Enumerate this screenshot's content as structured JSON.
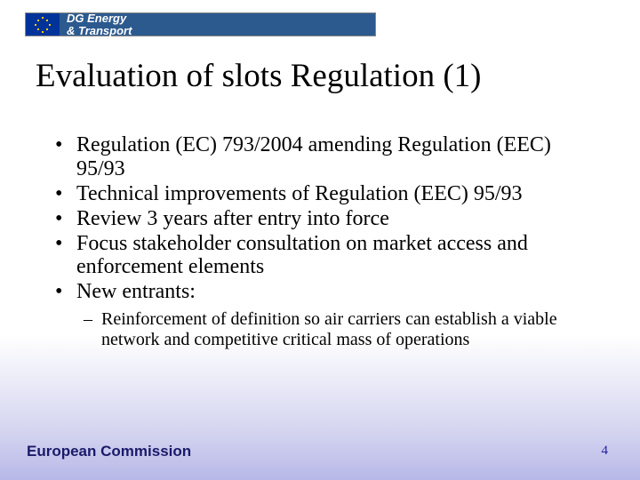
{
  "header": {
    "org_line1": "DG Energy",
    "org_line2": "& Transport"
  },
  "title": "Evaluation of slots Regulation (1)",
  "bullets": [
    "Regulation (EC) 793/2004 amending Regulation (EEC) 95/93",
    "Technical improvements of Regulation (EEC) 95/93",
    "Review 3 years after entry into force",
    "Focus stakeholder consultation on market access and enforcement elements",
    "New entrants:"
  ],
  "sub_bullets": [
    "Reinforcement of definition so air carriers can establish a viable network and competitive critical mass of operations"
  ],
  "footer": "European Commission",
  "page_number": "4",
  "colors": {
    "title_color": "#000000",
    "body_color": "#000000",
    "footer_color": "#1a1a6a",
    "header_bar": "#2c5a8f",
    "eu_flag_bg": "#003399"
  }
}
